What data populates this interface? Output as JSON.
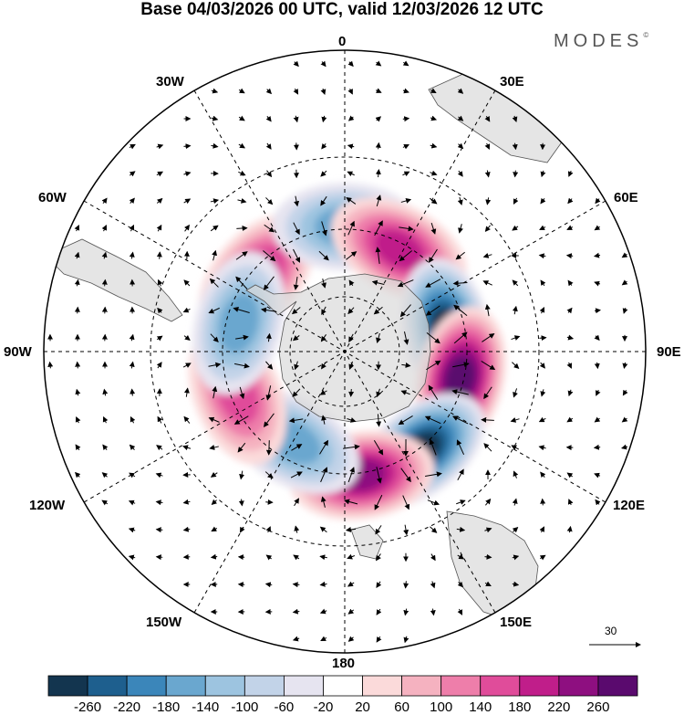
{
  "header": {
    "title": "Base 04/03/2026 00 UTC, valid 12/03/2026 12 UTC",
    "brand": "MODES",
    "brand_mark": "©"
  },
  "map": {
    "projection": "south-polar-stereographic",
    "longitude_labels": {
      "n0": "0",
      "n30e": "30E",
      "n60e": "60E",
      "n90e": "90E",
      "n120e": "120E",
      "n150e": "150E",
      "n180": "180",
      "n150w": "150W",
      "n120w": "120W",
      "n90w": "90W",
      "n60w": "60W",
      "n30w": "30W"
    },
    "reference_vector": "30",
    "anomaly_centers": [
      {
        "name": "positive-south-atlantic",
        "lon": -50,
        "lat": -48,
        "sign": "positive",
        "peak": 180
      },
      {
        "name": "negative-greenwich",
        "lon": 0,
        "lat": -45,
        "sign": "negative",
        "peak": -140
      },
      {
        "name": "positive-south-africa",
        "lon": 28,
        "lat": -48,
        "sign": "positive",
        "peak": 180
      },
      {
        "name": "negative-indian-ocean",
        "lon": 78,
        "lat": -52,
        "sign": "negative",
        "peak": -260
      },
      {
        "name": "positive-south-indian",
        "lon": 103,
        "lat": -47,
        "sign": "positive",
        "peak": 260
      },
      {
        "name": "negative-australia",
        "lon": 142,
        "lat": -45,
        "sign": "negative",
        "peak": -260
      },
      {
        "name": "positive-tasman",
        "lon": 172,
        "lat": -45,
        "sign": "positive",
        "peak": 220
      },
      {
        "name": "negative-south-pacific",
        "lon": -150,
        "lat": -52,
        "sign": "negative",
        "peak": -140
      },
      {
        "name": "positive-east-pacific",
        "lon": -112,
        "lat": -48,
        "sign": "positive",
        "peak": 140
      },
      {
        "name": "negative-drake",
        "lon": -75,
        "lat": -50,
        "sign": "negative",
        "peak": -140
      }
    ]
  },
  "legend": {
    "ticks": [
      "-260",
      "-220",
      "-180",
      "-140",
      "-100",
      "-60",
      "-20",
      "20",
      "60",
      "100",
      "140",
      "180",
      "220",
      "260"
    ],
    "colors": [
      "#13354f",
      "#1e5f8e",
      "#3b86ba",
      "#6aa7cf",
      "#9dc4e0",
      "#c2d3e8",
      "#e6e4f0",
      "#ffffff",
      "#fbdada",
      "#f5b2c0",
      "#ee7eaa",
      "#e04c9a",
      "#c01e8a",
      "#8e0f80",
      "#5a0a6e"
    ]
  }
}
